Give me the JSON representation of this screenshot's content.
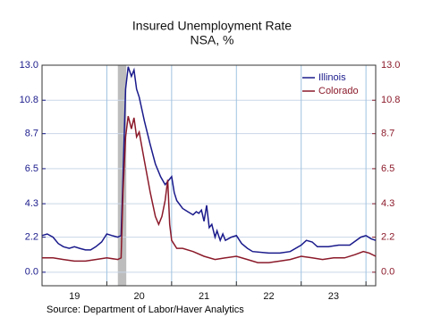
{
  "chart_data": {
    "type": "line",
    "title": "Insured Unemployment Rate",
    "subtitle": "NSA, %",
    "source": "Source:  Department of Labor/Haver Analytics",
    "shaded_range": [
      2020.17,
      2020.3
    ],
    "xlim": [
      2019,
      2024.15
    ],
    "xticks": [
      {
        "value": 2019.5,
        "label": "19"
      },
      {
        "value": 2020.5,
        "label": "20"
      },
      {
        "value": 2021.5,
        "label": "21"
      },
      {
        "value": 2022.5,
        "label": "22"
      },
      {
        "value": 2023.5,
        "label": "23"
      }
    ],
    "xgrid": [
      2020,
      2021,
      2022,
      2023,
      2024
    ],
    "ylim": [
      -0.85,
      13.0
    ],
    "yticks": [
      {
        "value": 0,
        "label": "0.0"
      },
      2.2,
      4.3,
      6.5,
      8.7,
      10.8,
      {
        "value": 13,
        "label": "13.0"
      }
    ],
    "y2lim": [
      -0.85,
      13.0
    ],
    "y2ticks": [
      {
        "value": 0,
        "label": "0.0"
      },
      2.2,
      4.3,
      6.5,
      8.7,
      10.8,
      {
        "value": 13,
        "label": "13.0"
      }
    ],
    "grid": true,
    "legend": "top-right",
    "series": [
      {
        "name": "Illinois",
        "color": "#1a1a8c",
        "x": [
          2019.0,
          2019.08,
          2019.17,
          2019.25,
          2019.33,
          2019.42,
          2019.5,
          2019.58,
          2019.67,
          2019.75,
          2019.83,
          2019.92,
          2020.0,
          2020.08,
          2020.17,
          2020.22,
          2020.25,
          2020.29,
          2020.33,
          2020.38,
          2020.42,
          2020.46,
          2020.5,
          2020.58,
          2020.67,
          2020.75,
          2020.83,
          2020.9,
          2020.96,
          2021.0,
          2021.04,
          2021.08,
          2021.17,
          2021.25,
          2021.33,
          2021.38,
          2021.42,
          2021.46,
          2021.5,
          2021.54,
          2021.58,
          2021.62,
          2021.67,
          2021.7,
          2021.75,
          2021.79,
          2021.83,
          2021.92,
          2022.0,
          2022.08,
          2022.17,
          2022.25,
          2022.5,
          2022.67,
          2022.83,
          2023.0,
          2023.08,
          2023.17,
          2023.25,
          2023.42,
          2023.58,
          2023.75,
          2023.92,
          2024.0,
          2024.08,
          2024.15
        ],
        "values": [
          2.3,
          2.4,
          2.2,
          1.8,
          1.6,
          1.5,
          1.6,
          1.5,
          1.4,
          1.4,
          1.6,
          1.9,
          2.4,
          2.3,
          2.2,
          2.3,
          6.0,
          11.5,
          12.9,
          12.3,
          12.7,
          11.5,
          11.0,
          9.5,
          8.0,
          6.8,
          6.0,
          5.5,
          5.8,
          6.0,
          5.0,
          4.5,
          4.0,
          3.8,
          3.6,
          3.8,
          3.7,
          3.9,
          3.2,
          4.2,
          2.8,
          3.0,
          2.2,
          2.6,
          2.0,
          2.4,
          2.0,
          2.2,
          2.3,
          1.8,
          1.5,
          1.3,
          1.2,
          1.2,
          1.3,
          1.7,
          2.0,
          1.9,
          1.6,
          1.6,
          1.7,
          1.7,
          2.2,
          2.3,
          2.1,
          2.0
        ]
      },
      {
        "name": "Colorado",
        "color": "#8b1a2a",
        "x": [
          2019.0,
          2019.17,
          2019.33,
          2019.5,
          2019.67,
          2019.83,
          2020.0,
          2020.17,
          2020.22,
          2020.25,
          2020.29,
          2020.33,
          2020.38,
          2020.42,
          2020.46,
          2020.5,
          2020.58,
          2020.67,
          2020.75,
          2020.8,
          2020.85,
          2020.9,
          2020.94,
          2020.97,
          2021.0,
          2021.08,
          2021.17,
          2021.33,
          2021.5,
          2021.67,
          2021.83,
          2022.0,
          2022.17,
          2022.33,
          2022.5,
          2022.67,
          2022.83,
          2023.0,
          2023.17,
          2023.33,
          2023.5,
          2023.67,
          2023.83,
          2023.96,
          2024.05,
          2024.15
        ],
        "values": [
          0.9,
          0.9,
          0.8,
          0.7,
          0.7,
          0.8,
          0.9,
          0.8,
          0.9,
          5.0,
          8.5,
          9.8,
          9.0,
          9.7,
          8.5,
          8.8,
          7.0,
          5.0,
          3.5,
          3.0,
          3.5,
          4.5,
          5.8,
          3.0,
          2.0,
          1.5,
          1.5,
          1.3,
          1.0,
          0.8,
          0.9,
          1.0,
          0.8,
          0.6,
          0.6,
          0.7,
          0.8,
          1.0,
          0.9,
          0.8,
          0.9,
          0.9,
          1.1,
          1.3,
          1.2,
          1.0
        ]
      }
    ]
  }
}
